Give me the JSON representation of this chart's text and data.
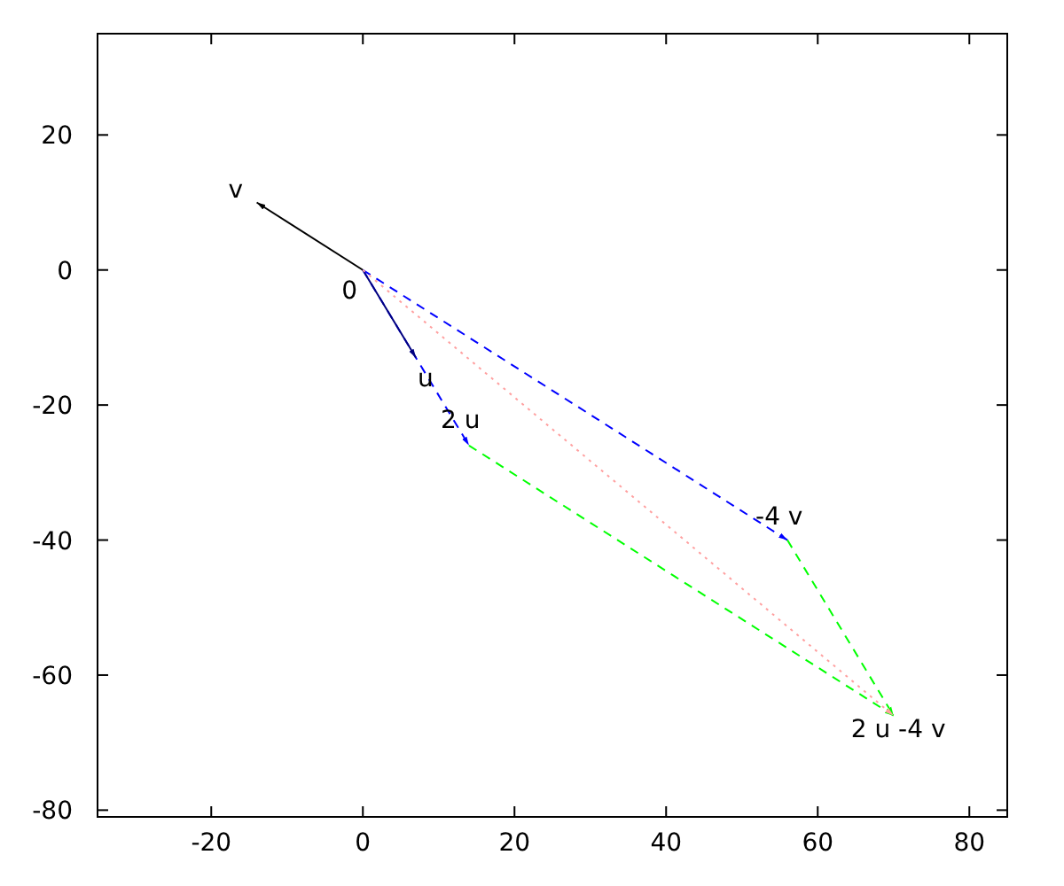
{
  "chart_data": {
    "type": "line",
    "xlim": [
      -35,
      85
    ],
    "ylim": [
      -81,
      35
    ],
    "xticks": [
      -20,
      0,
      20,
      40,
      60,
      80
    ],
    "yticks": [
      -80,
      -60,
      -40,
      -20,
      0,
      20
    ],
    "grid": false,
    "series": [
      {
        "color": "#0000ff",
        "line_style": "dashed",
        "x": [
          0,
          14
        ],
        "values": [
          0,
          -26
        ]
      },
      {
        "color": "#000000",
        "line_style": "solid",
        "x": [
          0,
          -14
        ],
        "values": [
          0,
          10
        ]
      },
      {
        "color": "#000080",
        "line_style": "solid",
        "x": [
          0,
          7
        ],
        "values": [
          0,
          -13
        ]
      },
      {
        "color": "#0000ff",
        "line_style": "dashed",
        "x": [
          0,
          56
        ],
        "values": [
          0,
          -40
        ]
      },
      {
        "color": "#00ff00",
        "line_style": "dashed",
        "x": [
          14,
          70
        ],
        "values": [
          -26,
          -66
        ]
      },
      {
        "color": "#00ff00",
        "line_style": "dashed",
        "x": [
          56,
          70
        ],
        "values": [
          -40,
          -66
        ]
      },
      {
        "color": "#ffa0a0",
        "line_style": "dotted",
        "x": [
          0,
          70
        ],
        "values": [
          0,
          -66
        ]
      }
    ],
    "annotations": [
      {
        "text": "v",
        "x": -14,
        "y": 10
      },
      {
        "text": "0",
        "x": 0,
        "y": 0
      },
      {
        "text": "u",
        "x": 7,
        "y": -13
      },
      {
        "text": "2 u",
        "x": 14,
        "y": -26
      },
      {
        "text": "-4 v",
        "x": 56,
        "y": -40
      },
      {
        "text": "2 u -4 v",
        "x": 70,
        "y": -66
      }
    ]
  }
}
